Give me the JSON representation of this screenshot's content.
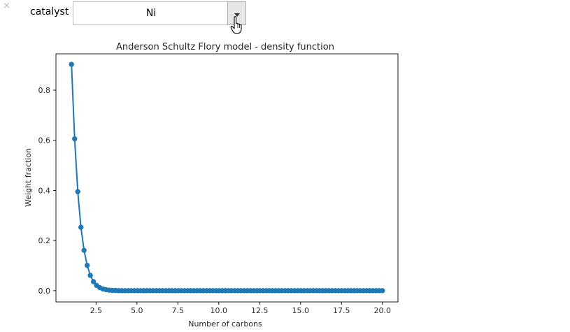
{
  "widget": {
    "close_glyph": "×",
    "label": "catalyst",
    "selected": "Ni",
    "icons": [
      "close-icon",
      "dropdown-arrow-icon",
      "hand-cursor-icon"
    ]
  },
  "chart_data": {
    "type": "line",
    "title": "Anderson Schultz Flory model - density function",
    "xlabel": "Number of carbons",
    "ylabel": "Weight fraction",
    "xlim": [
      0.05,
      20.95
    ],
    "ylim": [
      -0.045,
      0.945
    ],
    "xticks": [
      2.5,
      5.0,
      7.5,
      10.0,
      12.5,
      15.0,
      17.5,
      20.0
    ],
    "xtick_labels": [
      "2.5",
      "5.0",
      "7.5",
      "10.0",
      "12.5",
      "15.0",
      "17.5",
      "20.0"
    ],
    "yticks": [
      0.0,
      0.2,
      0.4,
      0.6,
      0.8
    ],
    "ytick_labels": [
      "0.0",
      "0.2",
      "0.4",
      "0.6",
      "0.8"
    ],
    "grid": false,
    "marker": "circle",
    "color": "#1f77b4",
    "series": [
      {
        "x_start": 1.0,
        "x_end": 20.0,
        "n_points": 100,
        "values": [
          0.903,
          0.606,
          0.395,
          0.253,
          0.161,
          0.101,
          0.061,
          0.036,
          0.021,
          0.012,
          0.007,
          0.004,
          0.002,
          0.001,
          0.001,
          0.0
        ]
      }
    ]
  },
  "colors": {
    "series": "#1f77b4",
    "axes": "#000000",
    "close_glyph": "#b9b9b9",
    "dropdown_button": "#e6e6e6"
  }
}
